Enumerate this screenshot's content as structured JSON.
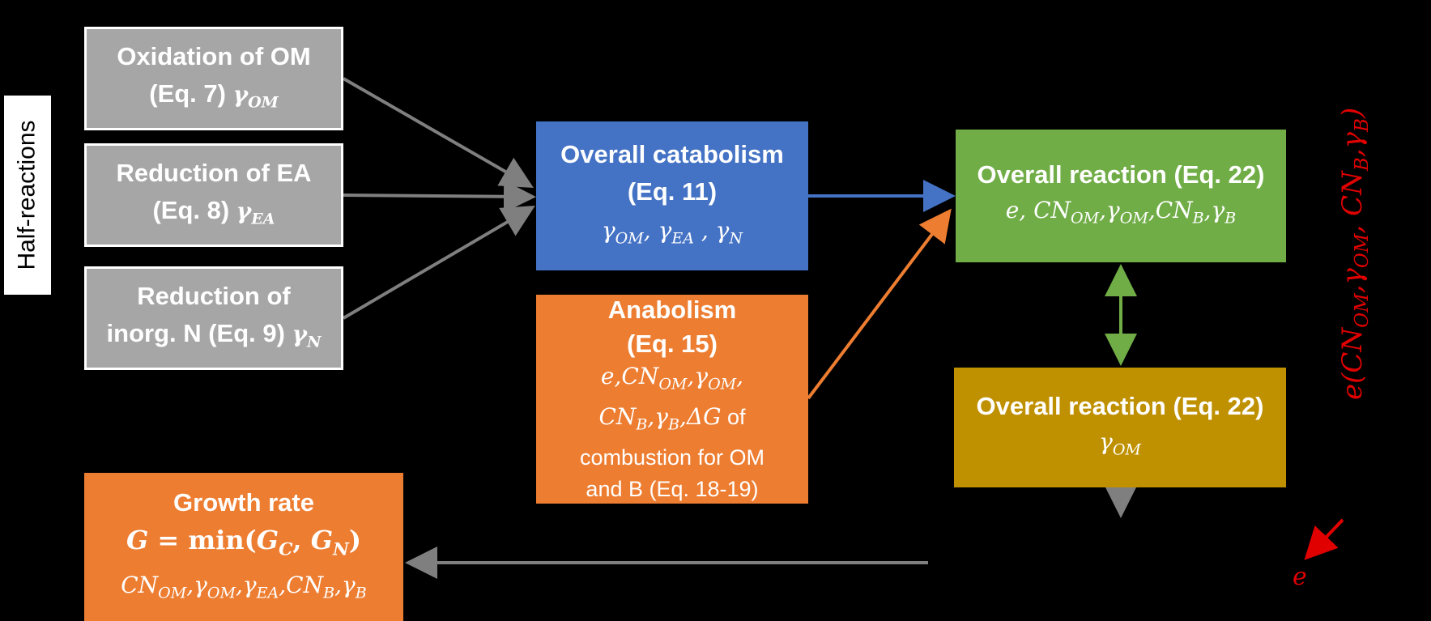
{
  "side_label": "Half-reactions",
  "oxidation": {
    "title": "Oxidation of OM",
    "eq": "(Eq. 7)",
    "sym": "γ",
    "sub": "OM"
  },
  "reduction_ea": {
    "title": "Reduction of EA",
    "eq": "(Eq. 8)",
    "sym": "γ",
    "sub": "EA"
  },
  "reduction_n": {
    "title1": "Reduction of",
    "title2": "inorg. N (Eq. 9)",
    "sym": "γ",
    "sub": "N"
  },
  "catabolism": {
    "title": "Overall catabolism",
    "eq": "(Eq. 11)",
    "params": "γ_OM, γ_EA , γ_N"
  },
  "anabolism": {
    "title": "Anabolism",
    "eq": "(Eq. 15)",
    "params1": "e,CN_OM,γ_OM,",
    "params2": "CN_B,γ_B,ΔG",
    "of": "of",
    "text1": "combustion for OM",
    "text2": "and B (Eq. 18-19)"
  },
  "overall_reaction": {
    "title": "Overall reaction (Eq. 22)",
    "params": "e, CN_OM,γ_OM,CN_B,γ_B"
  },
  "overall_reaction2": {
    "title": "Overall reaction (Eq. 22)",
    "params": "γ_OM"
  },
  "growth": {
    "title": "Growth rate",
    "formula": "G = min(G_C, G_N)",
    "params": "CN_OM,γ_OM,γ_EA,CN_B,γ_B"
  },
  "red_vertical": "e(CN_OM,γ_OM, CN_B,γ_B)",
  "red_e": "e",
  "colors": {
    "gray": "#a6a6a6",
    "blue": "#4472c4",
    "orange": "#ed7d31",
    "green": "#70ad47",
    "gold": "#bf9000",
    "red": "#e00000",
    "arrow_gray": "#7f7f7f"
  }
}
